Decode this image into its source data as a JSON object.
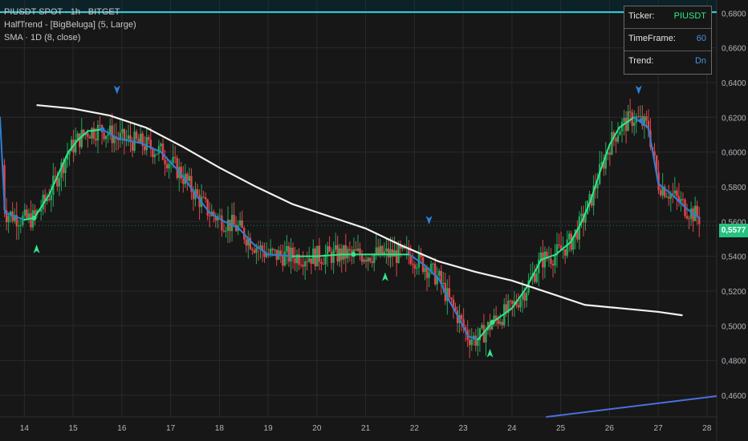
{
  "legend": {
    "symbol": "PIUSDT SPOT · 1h · BITGET",
    "indicator1": "HalfTrend - [BigBeluga] (5, Large)",
    "indicator2": "SMA · 1D (8, close)"
  },
  "info_table": {
    "ticker_label": "Ticker:",
    "ticker_value": "PIUSDT",
    "timeframe_label": "TimeFrame:",
    "timeframe_value": "60",
    "trend_label": "Trend:",
    "trend_value": "Dn"
  },
  "last_price": "0,5577",
  "colors": {
    "background": "#171717",
    "grid": "#2a2a2a",
    "up_candle": "#26a65b",
    "down_candle": "#e0464b",
    "halftrend_up": "#2ee88a",
    "halftrend_down": "#2f7fd8",
    "sma": "#f2f2f2",
    "cyan_line": "#2ed3df",
    "trend_line": "#4a6fe0"
  },
  "chart_data": {
    "type": "line",
    "title": "PIUSDT SPOT · 1h · BITGET",
    "x_ticks": [
      "14",
      "15",
      "16",
      "17",
      "18",
      "19",
      "20",
      "21",
      "22",
      "23",
      "24",
      "25",
      "26",
      "27",
      "28"
    ],
    "y_ticks": [
      "0,4600",
      "0,4800",
      "0,5000",
      "0,5200",
      "0,5400",
      "0,5600",
      "0,5800",
      "0,6000",
      "0,6200",
      "0,6400",
      "0,6600",
      "0,6800"
    ],
    "ylim": [
      0.4475,
      0.6875
    ],
    "xlim": [
      13.5,
      28.2
    ],
    "horizontal_line": 0.6805,
    "trend_line": {
      "x": [
        24.7,
        28.2
      ],
      "y": [
        0.4475,
        0.4595
      ]
    },
    "series": [
      {
        "name": "SMA · 1D (8, close)",
        "x": [
          14.25,
          15,
          15.75,
          16.5,
          17.25,
          18,
          18.75,
          19.5,
          20.25,
          21,
          21.75,
          22.5,
          23.25,
          24,
          24.75,
          25.5,
          26.25,
          27,
          27.5
        ],
        "y": [
          0.627,
          0.625,
          0.621,
          0.614,
          0.603,
          0.591,
          0.58,
          0.57,
          0.563,
          0.556,
          0.546,
          0.537,
          0.531,
          0.526,
          0.519,
          0.512,
          0.51,
          0.508,
          0.506
        ]
      },
      {
        "name": "HalfTrend",
        "x": [
          13.5,
          13.6,
          14.0,
          14.2,
          14.5,
          14.9,
          15.1,
          15.3,
          15.6,
          15.9,
          16.4,
          16.8,
          17.2,
          17.5,
          17.8,
          18.1,
          18.4,
          18.7,
          19.0,
          19.5,
          20.0,
          20.5,
          21.0,
          21.5,
          21.9,
          22.2,
          22.5,
          22.7,
          22.9,
          23.1,
          23.3,
          23.6,
          24.0,
          24.3,
          24.6,
          24.9,
          25.2,
          25.4,
          25.6,
          25.8,
          26.0,
          26.2,
          26.5,
          26.8,
          27.0,
          27.3,
          27.6,
          27.85
        ],
        "y": [
          0.62,
          0.565,
          0.561,
          0.562,
          0.575,
          0.6,
          0.607,
          0.612,
          0.613,
          0.608,
          0.605,
          0.6,
          0.588,
          0.576,
          0.565,
          0.56,
          0.556,
          0.547,
          0.541,
          0.54,
          0.54,
          0.541,
          0.541,
          0.541,
          0.541,
          0.535,
          0.527,
          0.515,
          0.505,
          0.494,
          0.492,
          0.502,
          0.51,
          0.522,
          0.538,
          0.541,
          0.548,
          0.558,
          0.571,
          0.588,
          0.604,
          0.614,
          0.62,
          0.614,
          0.582,
          0.575,
          0.567,
          0.562
        ]
      }
    ],
    "signals": [
      {
        "type": "up",
        "x": 14.25,
        "y": 0.544
      },
      {
        "type": "down",
        "x": 15.9,
        "y": 0.636
      },
      {
        "type": "up",
        "x": 21.4,
        "y": 0.528
      },
      {
        "type": "down",
        "x": 22.3,
        "y": 0.561
      },
      {
        "type": "up",
        "x": 23.55,
        "y": 0.484
      },
      {
        "type": "down",
        "x": 26.6,
        "y": 0.636
      }
    ],
    "last_price": 0.5577
  }
}
